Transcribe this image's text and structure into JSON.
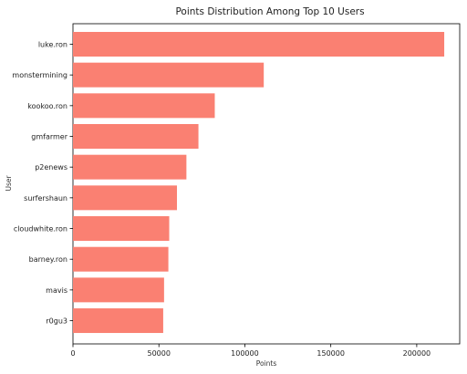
{
  "chart_data": {
    "type": "bar",
    "orientation": "horizontal",
    "title": "Points Distribution Among Top 10 Users",
    "xlabel": "Points",
    "ylabel": "User",
    "categories": [
      "luke.ron",
      "monstermining",
      "kookoo.ron",
      "gmfarmer",
      "p2enews",
      "surfershaun",
      "cloudwhite.ron",
      "barney.ron",
      "mavis",
      "r0gu3"
    ],
    "values": [
      216000,
      111000,
      82500,
      73000,
      66000,
      60500,
      56000,
      55500,
      53000,
      52500
    ],
    "xlim": [
      0,
      225000
    ],
    "xticks": [
      0,
      50000,
      100000,
      150000,
      200000
    ],
    "xtick_labels": [
      "0",
      "50000",
      "100000",
      "150000",
      "200000"
    ],
    "bar_color": "#FA8072",
    "grid": false
  }
}
